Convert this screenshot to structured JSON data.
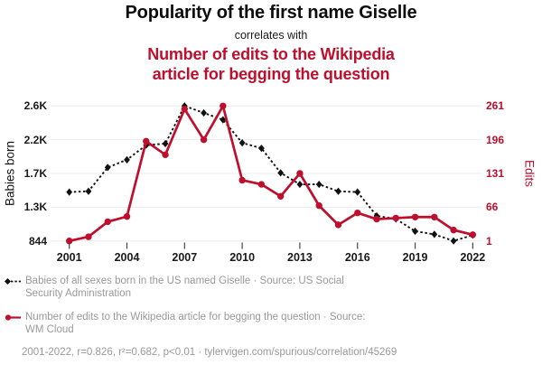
{
  "header": {
    "title": "Popularity of the first name Giselle",
    "connector": "correlates with",
    "subtitle_lines": [
      "Number of edits to the Wikipedia",
      "article for begging the question"
    ]
  },
  "chart_data": {
    "type": "line",
    "x": [
      2001,
      2002,
      2003,
      2004,
      2005,
      2006,
      2007,
      2008,
      2009,
      2010,
      2011,
      2012,
      2013,
      2014,
      2015,
      2016,
      2017,
      2018,
      2019,
      2020,
      2021,
      2022
    ],
    "x_ticks": [
      2001,
      2004,
      2007,
      2010,
      2013,
      2016,
      2019,
      2022
    ],
    "series": [
      {
        "name": "Babies of all sexes born in the US named Giselle",
        "axis": "left",
        "style": "dashed-diamond",
        "color": "#111111",
        "values": [
          1480,
          1490,
          1800,
          1900,
          2090,
          2110,
          2600,
          2510,
          2420,
          2120,
          2050,
          1730,
          1580,
          1580,
          1490,
          1480,
          1170,
          1130,
          970,
          930,
          844,
          920
        ]
      },
      {
        "name": "Number of edits to the Wikipedia article for begging the question",
        "axis": "right",
        "style": "solid-circle",
        "color": "#be0f2d",
        "values": [
          1,
          9,
          38,
          48,
          193,
          167,
          255,
          196,
          261,
          118,
          110,
          87,
          131,
          69,
          32,
          55,
          43,
          45,
          47,
          47,
          22,
          13
        ]
      }
    ],
    "left_axis": {
      "label": "Babies born",
      "ticks": [
        "2.6K",
        "2.2K",
        "1.7K",
        "1.3K",
        "844"
      ],
      "range": [
        844,
        2600
      ]
    },
    "right_axis": {
      "label": "Edits",
      "ticks": [
        "261",
        "196",
        "131",
        "66",
        "1"
      ],
      "range": [
        1,
        261
      ]
    },
    "grid": true,
    "legend_position": "bottom",
    "title": "Popularity of the first name Giselle correlates with Number of edits to the Wikipedia article for begging the question"
  },
  "legend": {
    "items": [
      {
        "marker": "black-diamond-dashed",
        "lines": [
          "Babies of all sexes born in the US named Giselle · Source: US Social",
          "Security Administration"
        ]
      },
      {
        "marker": "red-circle-solid",
        "lines": [
          "Number of edits to the Wikipedia article for begging the question · Source:",
          "WM Cloud"
        ]
      }
    ],
    "stats": "2001-2022, r=0.826, r²=0.682, p<0.01 · tylervigen.com/spurious/correlation/45269"
  },
  "colors": {
    "accent_red": "#be0f2d",
    "series_black": "#111111",
    "text_gray": "#999999",
    "grid": "#ececec",
    "tick_mark": "#444444"
  }
}
